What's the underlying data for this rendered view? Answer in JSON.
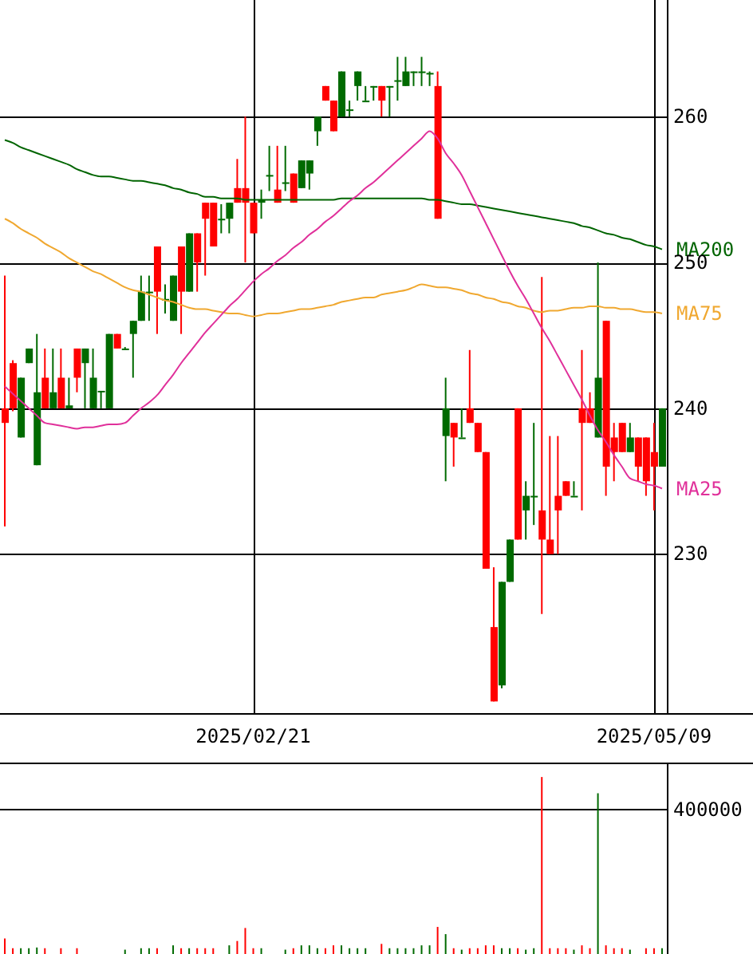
{
  "chart_data": [
    {
      "type": "candlestick",
      "categories": [
        null,
        null,
        null,
        null,
        null,
        null,
        null,
        null,
        null,
        null,
        null,
        null,
        null,
        null,
        null,
        null,
        null,
        null,
        null,
        null,
        null,
        null,
        null,
        null,
        null,
        null,
        null,
        null,
        null,
        null,
        null,
        "2025/02/21",
        null,
        null,
        null,
        null,
        null,
        null,
        null,
        null,
        null,
        null,
        null,
        null,
        null,
        null,
        null,
        null,
        null,
        null,
        null,
        null,
        null,
        null,
        null,
        null,
        null,
        null,
        null,
        null,
        null,
        null,
        null,
        null,
        null,
        null,
        null,
        null,
        null,
        null,
        null,
        null,
        null,
        null,
        null,
        null,
        null,
        null,
        null,
        null,
        null,
        "2025/05/09",
        null
      ],
      "ohlc": [
        [
          240.0,
          249.1,
          231.9,
          239.0
        ],
        [
          243.1,
          243.3,
          239.8,
          240.0
        ],
        [
          238.0,
          242.1,
          238.0,
          242.1
        ],
        [
          243.1,
          244.1,
          243.1,
          244.1
        ],
        [
          236.1,
          245.1,
          236.1,
          241.1
        ],
        [
          242.1,
          244.1,
          240.0,
          240.0
        ],
        [
          240.0,
          244.1,
          240.0,
          241.1
        ],
        [
          242.1,
          244.1,
          240.0,
          240.0
        ],
        [
          240.0,
          242.1,
          240.0,
          240.2
        ],
        [
          244.1,
          244.1,
          241.1,
          242.1
        ],
        [
          243.1,
          244.1,
          240.0,
          244.1
        ],
        [
          240.0,
          244.1,
          240.0,
          242.1
        ],
        [
          241.1,
          241.2,
          240.0,
          241.2
        ],
        [
          240.0,
          245.1,
          240.0,
          245.1
        ],
        [
          245.1,
          245.1,
          244.1,
          244.1
        ],
        [
          244.1,
          244.2,
          244.0,
          244.1
        ],
        [
          245.1,
          246.0,
          242.1,
          246.0
        ],
        [
          246.0,
          249.1,
          246.0,
          248.0
        ],
        [
          248.0,
          249.1,
          246.0,
          248.0
        ],
        [
          251.1,
          251.1,
          245.1,
          248.0
        ],
        [
          247.5,
          248.5,
          246.5,
          247.5
        ],
        [
          246.0,
          249.1,
          246.0,
          249.1
        ],
        [
          251.1,
          251.1,
          245.1,
          248.0
        ],
        [
          248.0,
          252.0,
          248.0,
          252.0
        ],
        [
          252.0,
          252.0,
          248.0,
          250.0
        ],
        [
          254.1,
          254.1,
          249.1,
          253.0
        ],
        [
          254.1,
          254.1,
          251.1,
          251.1
        ],
        [
          253.0,
          254.0,
          252.0,
          253.0
        ],
        [
          253.0,
          254.1,
          252.0,
          254.1
        ],
        [
          255.1,
          257.1,
          254.1,
          254.1
        ],
        [
          255.1,
          260.0,
          250.0,
          254.1
        ],
        [
          254.1,
          254.1,
          252.0,
          252.0
        ],
        [
          254.1,
          255.0,
          253.0,
          254.3
        ],
        [
          256.0,
          258.0,
          254.9,
          256.0
        ],
        [
          255.0,
          258.0,
          254.1,
          254.1
        ],
        [
          255.5,
          258.0,
          254.9,
          255.5
        ],
        [
          256.1,
          256.1,
          254.1,
          254.1
        ],
        [
          255.1,
          257.0,
          255.1,
          257.0
        ],
        [
          256.1,
          257.0,
          255.0,
          257.0
        ],
        [
          259.0,
          260.0,
          258.0,
          260.0
        ],
        [
          262.1,
          262.1,
          261.1,
          261.1
        ],
        [
          261.1,
          261.1,
          259.0,
          259.0
        ],
        [
          260.0,
          263.1,
          260.0,
          263.1
        ],
        [
          260.5,
          261.1,
          260.0,
          260.5
        ],
        [
          262.1,
          263.1,
          261.1,
          263.1
        ],
        [
          261.1,
          262.1,
          261.1,
          261.1
        ],
        [
          262.1,
          262.1,
          261.1,
          262.1
        ],
        [
          262.1,
          262.1,
          260.0,
          261.1
        ],
        [
          262.1,
          262.1,
          260.0,
          262.1
        ],
        [
          262.5,
          264.1,
          261.1,
          262.5
        ],
        [
          262.1,
          264.1,
          262.1,
          263.1
        ],
        [
          263.1,
          263.1,
          262.1,
          263.1
        ],
        [
          263.1,
          264.1,
          262.1,
          263.1
        ],
        [
          263.0,
          263.1,
          262.1,
          263.0
        ],
        [
          262.1,
          263.1,
          253.0,
          253.0
        ],
        [
          238.1,
          242.1,
          235.0,
          240.0
        ],
        [
          239.0,
          239.0,
          236.0,
          238.0
        ],
        [
          238.0,
          240.0,
          238.0,
          238.0
        ],
        [
          240.0,
          244.0,
          239.0,
          239.0
        ],
        [
          239.0,
          239.0,
          237.0,
          237.0
        ],
        [
          237.0,
          237.0,
          229.0,
          229.0
        ],
        [
          225.0,
          229.1,
          219.9,
          219.9
        ],
        [
          221.0,
          228.1,
          220.8,
          228.1
        ],
        [
          228.1,
          231.0,
          228.1,
          231.0
        ],
        [
          240.0,
          240.0,
          231.0,
          231.0
        ],
        [
          233.0,
          235.0,
          231.0,
          234.0
        ],
        [
          234.0,
          239.0,
          232.0,
          234.0
        ],
        [
          233.0,
          249.0,
          225.9,
          231.0
        ],
        [
          231.0,
          238.1,
          230.0,
          230.0
        ],
        [
          234.0,
          238.1,
          230.0,
          233.0
        ],
        [
          235.0,
          235.0,
          234.0,
          234.0
        ],
        [
          234.0,
          235.0,
          234.0,
          234.0
        ],
        [
          240.0,
          244.0,
          233.0,
          239.0
        ],
        [
          240.0,
          241.1,
          239.0,
          239.0
        ],
        [
          238.0,
          250.0,
          238.0,
          242.1
        ],
        [
          246.0,
          246.0,
          234.0,
          236.0
        ],
        [
          238.0,
          239.0,
          235.0,
          237.0
        ],
        [
          239.0,
          239.0,
          237.0,
          237.0
        ],
        [
          237.0,
          239.0,
          237.0,
          238.0
        ],
        [
          238.0,
          238.0,
          235.0,
          236.0
        ],
        [
          238.0,
          238.0,
          234.0,
          235.0
        ],
        [
          237.0,
          239.0,
          233.0,
          236.0
        ],
        [
          236.0,
          240.0,
          236.0,
          240.0
        ]
      ],
      "colors": [
        "#ff0000",
        "#ff0000",
        "#006a00",
        "#006a00",
        "#006a00",
        "#ff0000",
        "#006a00",
        "#ff0000",
        "#006a00",
        "#ff0000",
        "#006a00",
        "#006a00",
        "#006a00",
        "#006a00",
        "#ff0000",
        "#006a00",
        "#006a00",
        "#006a00",
        "#006a00",
        "#ff0000",
        "#006a00",
        "#006a00",
        "#ff0000",
        "#006a00",
        "#ff0000",
        "#ff0000",
        "#ff0000",
        "#006a00",
        "#006a00",
        "#ff0000",
        "#ff0000",
        "#ff0000",
        "#006a00",
        "#006a00",
        "#ff0000",
        "#006a00",
        "#ff0000",
        "#006a00",
        "#006a00",
        "#006a00",
        "#ff0000",
        "#ff0000",
        "#006a00",
        "#006a00",
        "#006a00",
        "#006a00",
        "#006a00",
        "#ff0000",
        "#006a00",
        "#006a00",
        "#006a00",
        "#006a00",
        "#006a00",
        "#006a00",
        "#ff0000",
        "#006a00",
        "#ff0000",
        "#006a00",
        "#ff0000",
        "#ff0000",
        "#ff0000",
        "#ff0000",
        "#006a00",
        "#006a00",
        "#ff0000",
        "#006a00",
        "#006a00",
        "#ff0000",
        "#ff0000",
        "#ff0000",
        "#ff0000",
        "#006a00",
        "#ff0000",
        "#ff0000",
        "#006a00",
        "#ff0000",
        "#ff0000",
        "#ff0000",
        "#006a00",
        "#ff0000",
        "#ff0000",
        "#ff0000",
        "#006a00"
      ],
      "series": [
        {
          "type": "line",
          "name": "MA200",
          "color": "#006400",
          "values": [
            258.4,
            258.2,
            257.9,
            257.7,
            257.5,
            257.3,
            257.1,
            256.9,
            256.7,
            256.4,
            256.2,
            256.0,
            255.9,
            255.9,
            255.8,
            255.7,
            255.6,
            255.6,
            255.5,
            255.4,
            255.3,
            255.1,
            255.0,
            254.8,
            254.7,
            254.5,
            254.5,
            254.4,
            254.4,
            254.4,
            254.3,
            254.3,
            254.3,
            254.3,
            254.3,
            254.3,
            254.3,
            254.3,
            254.3,
            254.3,
            254.3,
            254.3,
            254.4,
            254.4,
            254.4,
            254.4,
            254.4,
            254.4,
            254.4,
            254.4,
            254.4,
            254.4,
            254.4,
            254.3,
            254.3,
            254.2,
            254.1,
            254.0,
            254.0,
            253.9,
            253.8,
            253.7,
            253.6,
            253.5,
            253.4,
            253.3,
            253.2,
            253.1,
            253.0,
            252.9,
            252.8,
            252.7,
            252.5,
            252.4,
            252.2,
            252.0,
            251.9,
            251.7,
            251.6,
            251.4,
            251.2,
            251.1,
            250.9
          ]
        },
        {
          "type": "line",
          "name": "MA75",
          "color": "#f0a830",
          "values": [
            253.0,
            252.7,
            252.3,
            252.0,
            251.7,
            251.3,
            251.0,
            250.7,
            250.3,
            250.0,
            249.7,
            249.4,
            249.2,
            248.9,
            248.6,
            248.3,
            248.1,
            248.0,
            247.8,
            247.6,
            247.4,
            247.3,
            247.1,
            246.9,
            246.8,
            246.8,
            246.7,
            246.6,
            246.5,
            246.5,
            246.4,
            246.3,
            246.4,
            246.5,
            246.5,
            246.6,
            246.7,
            246.8,
            246.8,
            246.9,
            247.0,
            247.1,
            247.3,
            247.4,
            247.5,
            247.6,
            247.6,
            247.8,
            247.9,
            248.0,
            248.1,
            248.3,
            248.5,
            248.4,
            248.3,
            248.3,
            248.2,
            248.1,
            247.9,
            247.8,
            247.6,
            247.5,
            247.3,
            247.2,
            247.0,
            246.9,
            246.7,
            246.6,
            246.7,
            246.7,
            246.8,
            246.9,
            246.9,
            247.0,
            247.0,
            246.9,
            246.9,
            246.8,
            246.8,
            246.7,
            246.6,
            246.6,
            246.5
          ]
        },
        {
          "type": "line",
          "name": "MA25",
          "color": "#e0309a",
          "values": [
            241.5,
            241.0,
            240.5,
            240.0,
            239.5,
            239.0,
            238.9,
            238.8,
            238.7,
            238.6,
            238.7,
            238.7,
            238.8,
            238.9,
            238.9,
            239.0,
            239.5,
            240.0,
            240.4,
            240.9,
            241.6,
            242.3,
            243.1,
            243.8,
            244.5,
            245.2,
            245.8,
            246.4,
            247.0,
            247.5,
            248.1,
            248.7,
            249.2,
            249.6,
            250.1,
            250.5,
            251.0,
            251.4,
            251.9,
            252.3,
            252.8,
            253.2,
            253.7,
            254.2,
            254.6,
            255.1,
            255.5,
            256.0,
            256.5,
            257.0,
            257.5,
            258.0,
            258.5,
            259.0,
            258.5,
            257.5,
            256.8,
            256.0,
            254.9,
            253.8,
            252.7,
            251.6,
            250.5,
            249.4,
            248.4,
            247.5,
            246.5,
            245.5,
            244.6,
            243.6,
            242.6,
            241.6,
            240.6,
            239.5,
            238.5,
            237.7,
            236.8,
            236.0,
            235.2,
            235.0,
            234.8,
            234.7,
            234.5
          ]
        }
      ],
      "ylim": [
        219.1,
        268.0
      ],
      "yticks": [
        230,
        240,
        250,
        260
      ],
      "grid": true
    },
    {
      "type": "bar",
      "categories": [
        null,
        null,
        null,
        null,
        null,
        null,
        null,
        null,
        null,
        null,
        null,
        null,
        null,
        null,
        null,
        null,
        null,
        null,
        null,
        null,
        null,
        null,
        null,
        null,
        null,
        null,
        null,
        null,
        null,
        null,
        null,
        "2025/02/21",
        null,
        null,
        null,
        null,
        null,
        null,
        null,
        null,
        null,
        null,
        null,
        null,
        null,
        null,
        null,
        null,
        null,
        null,
        null,
        null,
        null,
        null,
        null,
        null,
        null,
        null,
        null,
        null,
        null,
        null,
        null,
        null,
        null,
        null,
        null,
        null,
        null,
        null,
        null,
        null,
        null,
        null,
        null,
        null,
        null,
        null,
        null,
        null,
        null,
        "2025/05/09",
        null
      ],
      "values": [
        43000,
        16000,
        16000,
        16000,
        18000,
        16000,
        0,
        16000,
        0,
        16000,
        0,
        0,
        0,
        0,
        0,
        12000,
        0,
        16000,
        16000,
        16000,
        0,
        24000,
        16000,
        16000,
        16000,
        16000,
        16000,
        0,
        24000,
        36000,
        72000,
        16000,
        16000,
        0,
        0,
        12000,
        16000,
        24000,
        24000,
        16000,
        16000,
        24000,
        24000,
        16000,
        16000,
        16000,
        0,
        28000,
        16000,
        16000,
        16000,
        16000,
        24000,
        24000,
        75000,
        55000,
        16000,
        12000,
        16000,
        16000,
        24000,
        24000,
        16000,
        16000,
        16000,
        12000,
        16000,
        490000,
        16000,
        16000,
        16000,
        12000,
        24000,
        16000,
        445000,
        24000,
        16000,
        16000,
        12000,
        0,
        16000,
        16000,
        16000
      ],
      "colors": [
        "#ff0000",
        "#ff0000",
        "#006a00",
        "#006a00",
        "#006a00",
        "#ff0000",
        "#006a00",
        "#ff0000",
        "#006a00",
        "#ff0000",
        "#006a00",
        "#006a00",
        "#006a00",
        "#006a00",
        "#ff0000",
        "#006a00",
        "#006a00",
        "#006a00",
        "#006a00",
        "#ff0000",
        "#006a00",
        "#006a00",
        "#ff0000",
        "#006a00",
        "#ff0000",
        "#ff0000",
        "#ff0000",
        "#006a00",
        "#006a00",
        "#ff0000",
        "#ff0000",
        "#ff0000",
        "#006a00",
        "#006a00",
        "#ff0000",
        "#006a00",
        "#ff0000",
        "#006a00",
        "#006a00",
        "#006a00",
        "#ff0000",
        "#ff0000",
        "#006a00",
        "#006a00",
        "#006a00",
        "#006a00",
        "#006a00",
        "#ff0000",
        "#006a00",
        "#006a00",
        "#006a00",
        "#006a00",
        "#006a00",
        "#006a00",
        "#ff0000",
        "#006a00",
        "#ff0000",
        "#006a00",
        "#ff0000",
        "#ff0000",
        "#ff0000",
        "#ff0000",
        "#006a00",
        "#006a00",
        "#ff0000",
        "#006a00",
        "#006a00",
        "#ff0000",
        "#ff0000",
        "#ff0000",
        "#ff0000",
        "#006a00",
        "#ff0000",
        "#ff0000",
        "#006a00",
        "#ff0000",
        "#ff0000",
        "#ff0000",
        "#006a00",
        "#ff0000",
        "#ff0000",
        "#ff0000",
        "#006a00"
      ],
      "ylim": [
        0,
        530000
      ],
      "yticks": [
        400000
      ],
      "grid": "y",
      "tick_labels": "y"
    }
  ]
}
